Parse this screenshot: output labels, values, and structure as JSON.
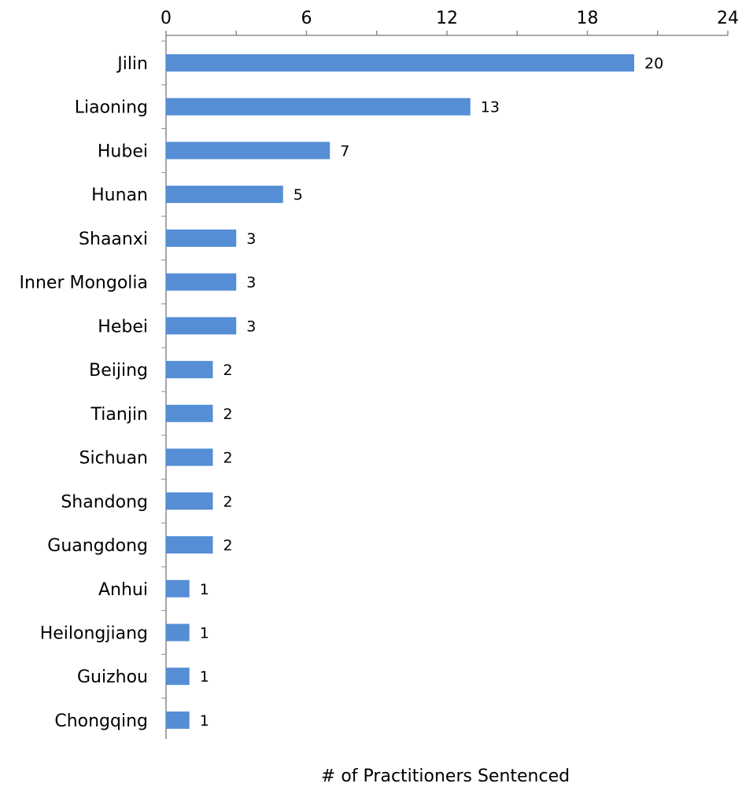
{
  "chart_data": {
    "type": "bar",
    "orientation": "horizontal",
    "categories": [
      "Jilin",
      "Liaoning",
      "Hubei",
      "Hunan",
      "Shaanxi",
      "Inner Mongolia",
      "Hebei",
      "Beijing",
      "Tianjin",
      "Sichuan",
      "Shandong",
      "Guangdong",
      "Anhui",
      "Heilongjiang",
      "Guizhou",
      "Chongqing"
    ],
    "values": [
      20,
      13,
      7,
      5,
      3,
      3,
      3,
      2,
      2,
      2,
      2,
      2,
      1,
      1,
      1,
      1
    ],
    "xlabel": "# of Practitioners Sentenced",
    "xlim": [
      0,
      24
    ],
    "x_ticks": [
      0,
      6,
      12,
      18,
      24
    ],
    "x_axis_position": "top",
    "bar_color": "#558ED5",
    "grid": false,
    "legend": "none"
  }
}
